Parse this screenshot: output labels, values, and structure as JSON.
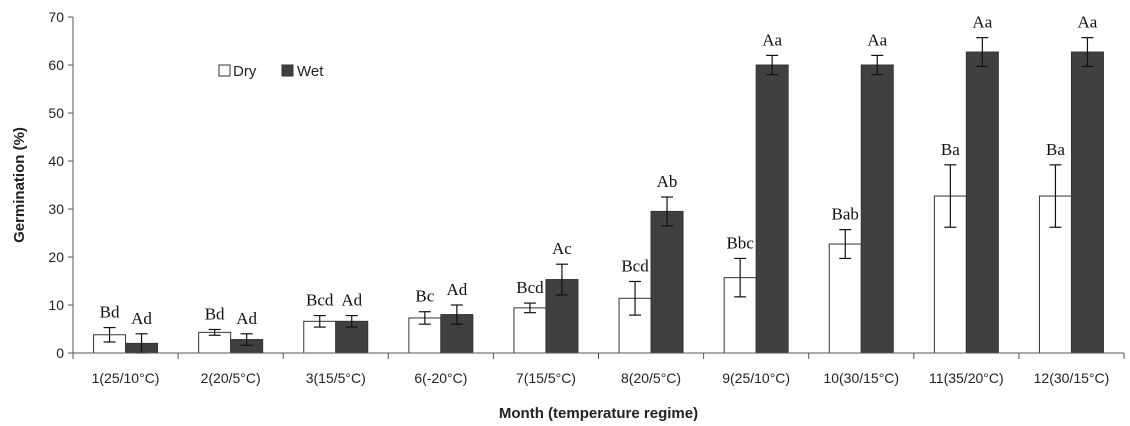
{
  "chart_data": {
    "type": "bar",
    "xlabel": "Month (temperature regime)",
    "ylabel": "Germination (%)",
    "ylim": [
      0,
      70
    ],
    "yticks": [
      0,
      10,
      20,
      30,
      40,
      50,
      60,
      70
    ],
    "legend_position": "top-left",
    "grid": false,
    "categories": [
      "1(25/10°C)",
      "2(20/5°C)",
      "3(15/5°C)",
      "6(-20°C)",
      "7(15/5°C)",
      "8(20/5°C)",
      "9(25/10°C)",
      "10(30/15°C)",
      "11(35/20°C)",
      "12(30/15°C)"
    ],
    "series": [
      {
        "name": "Dry",
        "color": "#ffffff",
        "values": [
          3.8,
          4.3,
          6.6,
          7.3,
          9.4,
          11.4,
          15.7,
          22.7,
          32.7,
          32.7
        ],
        "errors": [
          1.5,
          0.6,
          1.2,
          1.3,
          1.0,
          3.5,
          4.0,
          3.0,
          6.5,
          6.5
        ],
        "labels": [
          "Bd",
          "Bd",
          "Bcd",
          "Bc",
          "Bcd",
          "Bcd",
          "Bbc",
          "Bab",
          "Ba",
          "Ba"
        ]
      },
      {
        "name": "Wet",
        "color": "#404040",
        "values": [
          2.0,
          2.8,
          6.6,
          8.0,
          15.3,
          29.5,
          60.0,
          60.0,
          62.7,
          62.7
        ],
        "errors": [
          2.0,
          1.2,
          1.2,
          2.0,
          3.2,
          3.0,
          2.0,
          2.0,
          3.0,
          3.0
        ],
        "labels": [
          "Ad",
          "Ad",
          "Ad",
          "Ad",
          "Ac",
          "Ab",
          "Aa",
          "Aa",
          "Aa",
          "Aa"
        ]
      }
    ]
  }
}
